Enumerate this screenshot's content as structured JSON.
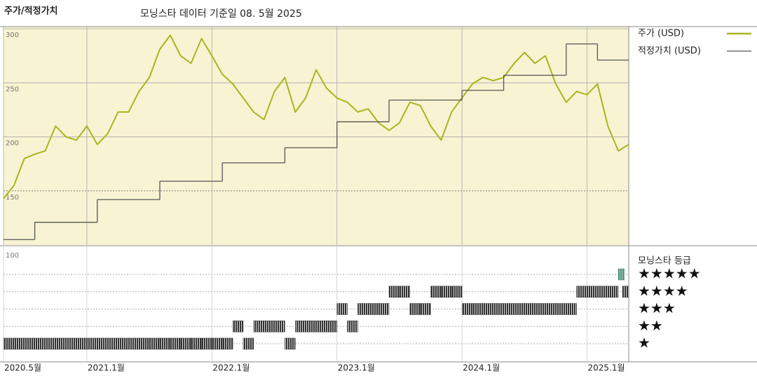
{
  "chart_data": {
    "type": "line",
    "title": "주가/적정가치",
    "subtitle": "모닝스타 데이터 기준일 08. 5월 2025",
    "xlim": [
      "2020-05",
      "2025-05"
    ],
    "xticks": [
      {
        "value": "2020-05",
        "label": "2020.5월"
      },
      {
        "value": "2021-01",
        "label": "2021.1월"
      },
      {
        "value": "2022-01",
        "label": "2022.1월"
      },
      {
        "value": "2023-01",
        "label": "2023.1월"
      },
      {
        "value": "2024-01",
        "label": "2024.1월"
      },
      {
        "value": "2025-01",
        "label": "2025.1월"
      }
    ],
    "ylim": [
      100,
      302
    ],
    "yticks": [
      300,
      250,
      200,
      150
    ],
    "grid": true,
    "background": "#f8f3d2",
    "series": [
      {
        "name": "주가 (USD)",
        "color": "#a8b520",
        "step": false,
        "x": [
          "2020-05",
          "2020-06",
          "2020-07",
          "2020-08",
          "2020-09",
          "2020-10",
          "2020-11",
          "2020-12",
          "2021-01",
          "2021-02",
          "2021-03",
          "2021-04",
          "2021-05",
          "2021-06",
          "2021-07",
          "2021-08",
          "2021-09",
          "2021-10",
          "2021-11",
          "2021-12",
          "2022-01",
          "2022-02",
          "2022-03",
          "2022-04",
          "2022-05",
          "2022-06",
          "2022-07",
          "2022-08",
          "2022-09",
          "2022-10",
          "2022-11",
          "2022-12",
          "2023-01",
          "2023-02",
          "2023-03",
          "2023-04",
          "2023-05",
          "2023-06",
          "2023-07",
          "2023-08",
          "2023-09",
          "2023-10",
          "2023-11",
          "2023-12",
          "2024-01",
          "2024-02",
          "2024-03",
          "2024-04",
          "2024-05",
          "2024-06",
          "2024-07",
          "2024-08",
          "2024-09",
          "2024-10",
          "2024-11",
          "2024-12",
          "2025-01",
          "2025-02",
          "2025-03",
          "2025-04",
          "2025-05"
        ],
        "values": [
          143,
          155,
          180,
          184,
          187,
          210,
          200,
          197,
          210,
          193,
          203,
          223,
          223,
          242,
          255,
          281,
          294,
          275,
          268,
          291,
          275,
          258,
          249,
          236,
          223,
          216,
          242,
          255,
          223,
          236,
          262,
          245,
          236,
          232,
          223,
          226,
          213,
          206,
          213,
          232,
          229,
          210,
          197,
          223,
          236,
          249,
          255,
          252,
          255,
          268,
          278,
          268,
          275,
          249,
          232,
          242,
          239,
          249,
          210,
          187,
          193
        ]
      },
      {
        "name": "적정가치 (USD)",
        "color": "#555555",
        "step": true,
        "x": [
          "2020-05",
          "2020-08",
          "2021-02",
          "2021-08",
          "2022-02",
          "2022-08",
          "2023-01",
          "2023-06",
          "2024-01",
          "2024-05",
          "2024-11",
          "2025-02",
          "2025-05"
        ],
        "values": [
          105,
          121,
          142,
          159,
          176,
          190,
          214,
          234,
          243,
          257,
          286,
          271,
          271
        ]
      }
    ],
    "rating": {
      "title": "모닝스타 등급",
      "ylabel": "100",
      "levels": [
        "★",
        "★★",
        "★★★",
        "★★★★",
        "★★★★★"
      ],
      "colors": [
        "#333333",
        "#333333",
        "#333333",
        "#333333",
        "#3d8c6e"
      ],
      "x": [
        "2020-05",
        "2020-06",
        "2020-07",
        "2020-08",
        "2020-09",
        "2020-10",
        "2020-11",
        "2020-12",
        "2021-01",
        "2021-02",
        "2021-03",
        "2021-04",
        "2021-05",
        "2021-06",
        "2021-07",
        "2021-08",
        "2021-09",
        "2021-10",
        "2021-11",
        "2021-12",
        "2022-01",
        "2022-02",
        "2022-03",
        "2022-04",
        "2022-05",
        "2022-06",
        "2022-07",
        "2022-08",
        "2022-09",
        "2022-10",
        "2022-11",
        "2022-12",
        "2023-01",
        "2023-02",
        "2023-03",
        "2023-04",
        "2023-05",
        "2023-06",
        "2023-07",
        "2023-08",
        "2023-09",
        "2023-10",
        "2023-11",
        "2023-12",
        "2024-01",
        "2024-02",
        "2024-03",
        "2024-04",
        "2024-05",
        "2024-06",
        "2024-07",
        "2024-08",
        "2024-09",
        "2024-10",
        "2024-11",
        "2024-12",
        "2025-01",
        "2025-02",
        "2025-03",
        "2025-04",
        "2025-05"
      ],
      "values": [
        1,
        1,
        1,
        1,
        1,
        1,
        1,
        1,
        1,
        1,
        1,
        1,
        1,
        1,
        1,
        1,
        1,
        1,
        1,
        1,
        1,
        1,
        2,
        1,
        2,
        2,
        2,
        1,
        2,
        2,
        2,
        2,
        3,
        2,
        3,
        3,
        3,
        4,
        4,
        3,
        3,
        4,
        4,
        4,
        3,
        3,
        3,
        3,
        3,
        3,
        3,
        3,
        3,
        3,
        3,
        4,
        4,
        4,
        4,
        5,
        4
      ]
    }
  }
}
